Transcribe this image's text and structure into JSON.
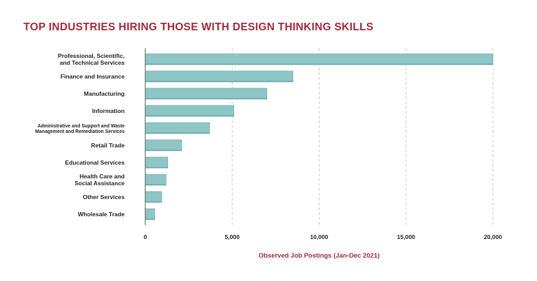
{
  "chart_data": {
    "type": "bar",
    "orientation": "horizontal",
    "title": "TOP INDUSTRIES HIRING THOSE WITH DESIGN THINKING SKILLS",
    "xlabel": "Observed Job Postings (Jan-Dec 2021)",
    "ylabel": "",
    "xlim": [
      0,
      20000
    ],
    "xticks": [
      0,
      5000,
      10000,
      15000,
      20000
    ],
    "xtick_labels": [
      "0",
      "5,000",
      "10,000",
      "15,000",
      "20,000"
    ],
    "grid": true,
    "categories": [
      "Professional, Scientific, and Technical Services",
      "Finance and Insurance",
      "Manufacturing",
      "Information",
      "Administrative and Support and Waste Management and Remediation Services",
      "Retail Trade",
      "Educational Services",
      "Health Care and Social Assistance",
      "Other Services",
      "Wholesale Trade"
    ],
    "category_lines": [
      [
        "Professional, Scientific,",
        "and Technical Services"
      ],
      [
        "Finance and Insurance"
      ],
      [
        "Manufacturing"
      ],
      [
        "Information"
      ],
      [
        "Administrative and Support and Waste",
        "Management and Remediation Services"
      ],
      [
        "Retail Trade"
      ],
      [
        "Educational Services"
      ],
      [
        "Health Care and",
        "Social Assistance"
      ],
      [
        "Other Services"
      ],
      [
        "Wholesale Trade"
      ]
    ],
    "values": [
      20000,
      8500,
      7000,
      5100,
      3700,
      2100,
      1300,
      1200,
      950,
      550
    ],
    "colors": {
      "bar": "#8ec6c6",
      "bar_edge": "#6fa8a8",
      "title": "#a12a3c",
      "axis_title": "#a12a3c",
      "grid": "#c8c8c8",
      "text": "#222222"
    }
  }
}
